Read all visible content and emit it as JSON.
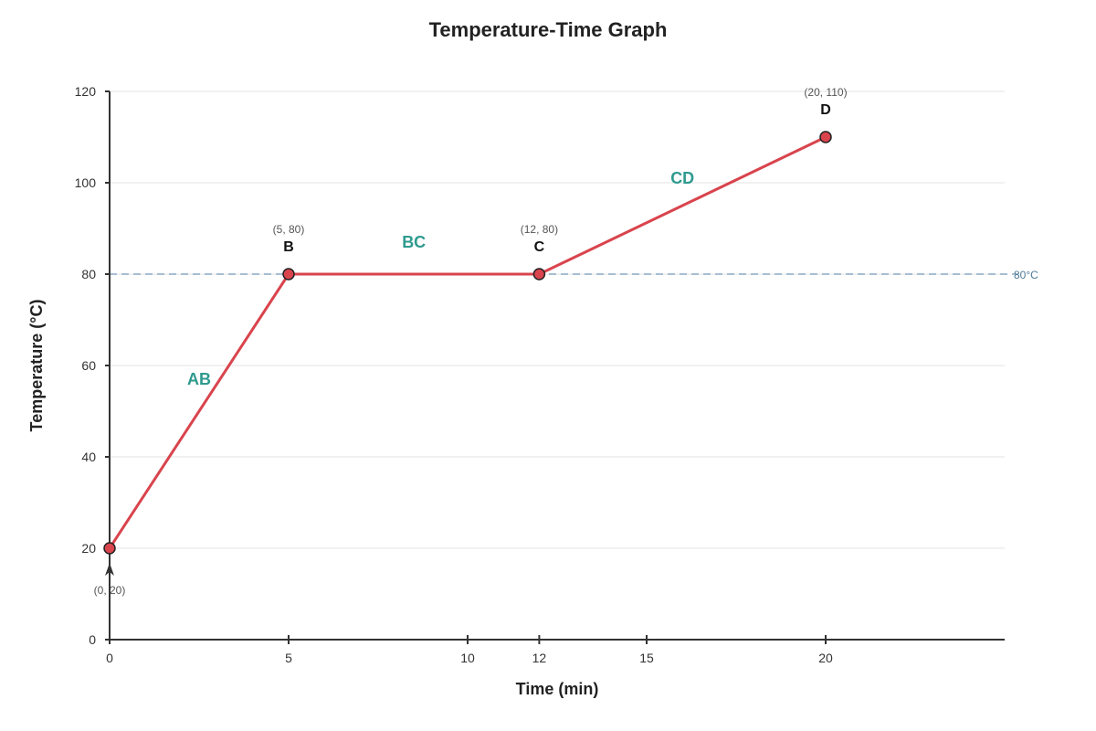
{
  "chart_data": {
    "type": "line",
    "title": "Temperature-Time Graph",
    "xlabel": "Time (min)",
    "ylabel": "Temperature (°C)",
    "xlim": [
      0,
      25
    ],
    "ylim": [
      0,
      120
    ],
    "x_ticks": [
      0,
      5,
      10,
      12,
      15,
      20
    ],
    "y_ticks": [
      0,
      20,
      40,
      60,
      80,
      100,
      120
    ],
    "grid": true,
    "series": [
      {
        "color": "#d9444d",
        "points": [
          {
            "x": 0,
            "y": 20,
            "coord_label": "(0, 20)",
            "name": ""
          },
          {
            "x": 5,
            "y": 80,
            "coord_label": "(5, 80)",
            "name": "B"
          },
          {
            "x": 12,
            "y": 80,
            "coord_label": "(12, 80)",
            "name": "C"
          },
          {
            "x": 20,
            "y": 110,
            "coord_label": "(20, 110)",
            "name": "D"
          }
        ]
      }
    ],
    "segments": [
      {
        "label": "AB",
        "x": 2.5,
        "y": 57
      },
      {
        "label": "BC",
        "x": 8.5,
        "y": 87
      },
      {
        "label": "CD",
        "x": 16,
        "y": 101
      }
    ],
    "segment_label_color": "#2e9a8e",
    "reference_line": {
      "y": 80,
      "label": "80°C",
      "color": "#4f7a96"
    }
  }
}
